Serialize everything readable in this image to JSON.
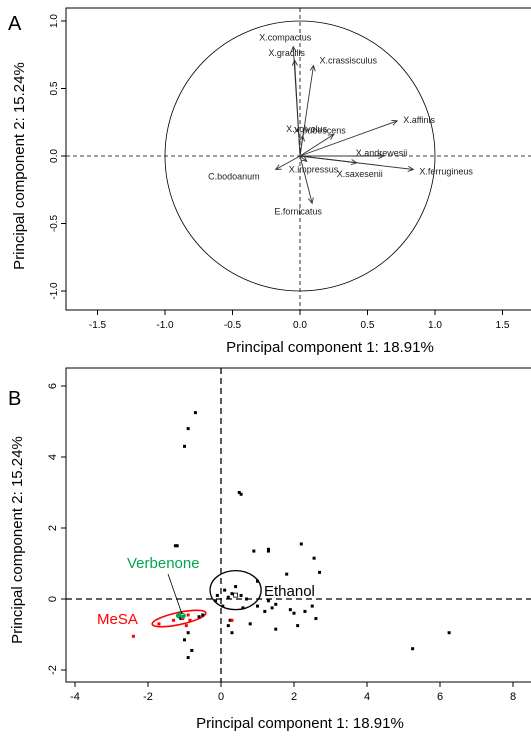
{
  "chart_data": [
    {
      "type": "vector-biplot",
      "panel_label": "A",
      "xlabel": "Principal component 1: 18.91%",
      "ylabel": "Principal component 2: 15.24%",
      "xlim": [
        -1.75,
        1.75
      ],
      "ylim": [
        -1.05,
        1.05
      ],
      "x_ticks": [
        "-1.5",
        "-1.0",
        "-0.5",
        "0.0",
        "0.5",
        "1.0",
        "1.5"
      ],
      "y_ticks": [
        "-1.0",
        "-0.5",
        "0.0",
        "0.5",
        "1.0"
      ],
      "reference_lines": "dashed at x=0 and y=0",
      "correlation_circle_radius": 1.0,
      "vectors": [
        {
          "name": "X.compactus",
          "x": -0.05,
          "y": 0.81
        },
        {
          "name": "X.gracilis",
          "x": -0.04,
          "y": 0.71
        },
        {
          "name": "X.crassisculus",
          "x": 0.1,
          "y": 0.67
        },
        {
          "name": "X.affinis",
          "x": 0.72,
          "y": 0.26
        },
        {
          "name": "X.volvolus",
          "x": 0.02,
          "y": 0.15
        },
        {
          "name": "X.pubescens",
          "x": 0.25,
          "y": 0.16
        },
        {
          "name": "X.andrewesii",
          "x": 0.62,
          "y": 0.0
        },
        {
          "name": "X.saxesenii",
          "x": 0.42,
          "y": -0.05
        },
        {
          "name": "X.ferrugineus",
          "x": 0.84,
          "y": -0.1
        },
        {
          "name": "X.impressus",
          "x": 0.05,
          "y": -0.04
        },
        {
          "name": "C.bodoanum",
          "x": -0.18,
          "y": -0.1
        },
        {
          "name": "E.fornicatus",
          "x": 0.09,
          "y": -0.35
        }
      ]
    },
    {
      "type": "scatter",
      "panel_label": "B",
      "xlabel": "Principal component 1: 18.91%",
      "ylabel": "Principal component 2: 15.24%",
      "xlim": [
        -4.4,
        8.6
      ],
      "ylim": [
        -2.3,
        6.4
      ],
      "x_ticks": [
        "-4",
        "-2",
        "0",
        "2",
        "4",
        "6",
        "8"
      ],
      "y_ticks": [
        "-2",
        "0",
        "2",
        "4",
        "6"
      ],
      "reference_lines": "dashed at x=0 and y=0",
      "groups": [
        {
          "name": "Ethanol",
          "color": "#000000",
          "ellipse": {
            "cx": 0.4,
            "cy": 0.25,
            "rx": 0.7,
            "ry": 0.55
          },
          "points": [
            {
              "x": -0.7,
              "y": 5.25
            },
            {
              "x": -0.9,
              "y": 4.8
            },
            {
              "x": -1.0,
              "y": 4.3
            },
            {
              "x": 0.5,
              "y": 3.0
            },
            {
              "x": 0.55,
              "y": 2.95
            },
            {
              "x": -1.25,
              "y": 1.5
            },
            {
              "x": -1.2,
              "y": 1.5
            },
            {
              "x": 1.3,
              "y": 1.4
            },
            {
              "x": 1.3,
              "y": 1.35
            },
            {
              "x": 0.9,
              "y": 1.35
            },
            {
              "x": 2.2,
              "y": 1.55
            },
            {
              "x": 2.55,
              "y": 1.15
            },
            {
              "x": 2.7,
              "y": 0.75
            },
            {
              "x": 1.0,
              "y": 0.5
            },
            {
              "x": 1.8,
              "y": 0.7
            },
            {
              "x": 0.4,
              "y": 0.35
            },
            {
              "x": 0.1,
              "y": 0.25
            },
            {
              "x": 0.3,
              "y": 0.15
            },
            {
              "x": 0.55,
              "y": 0.1
            },
            {
              "x": 0.7,
              "y": 0.0
            },
            {
              "x": 0.2,
              "y": 0.05
            },
            {
              "x": -0.1,
              "y": 0.1
            },
            {
              "x": -0.15,
              "y": -0.05
            },
            {
              "x": 0.05,
              "y": -0.2
            },
            {
              "x": 0.6,
              "y": -0.25
            },
            {
              "x": 1.0,
              "y": -0.2
            },
            {
              "x": 1.2,
              "y": -0.35
            },
            {
              "x": 1.4,
              "y": -0.25
            },
            {
              "x": 1.3,
              "y": -0.05
            },
            {
              "x": 1.5,
              "y": -0.15
            },
            {
              "x": 1.9,
              "y": -0.3
            },
            {
              "x": 2.0,
              "y": -0.4
            },
            {
              "x": 2.3,
              "y": -0.35
            },
            {
              "x": 2.5,
              "y": -0.2
            },
            {
              "x": 2.6,
              "y": -0.55
            },
            {
              "x": 2.1,
              "y": -0.75
            },
            {
              "x": 1.5,
              "y": -0.85
            },
            {
              "x": 0.8,
              "y": -0.7
            },
            {
              "x": 0.2,
              "y": -0.75
            },
            {
              "x": 0.3,
              "y": -0.95
            },
            {
              "x": -0.6,
              "y": -0.5
            },
            {
              "x": -0.5,
              "y": -0.45
            },
            {
              "x": -0.9,
              "y": -0.95
            },
            {
              "x": -1.0,
              "y": -1.15
            },
            {
              "x": -0.8,
              "y": -1.45
            },
            {
              "x": -0.9,
              "y": -1.65
            },
            {
              "x": -1.1,
              "y": -0.55
            },
            {
              "x": 0.25,
              "y": -0.6
            },
            {
              "x": 5.25,
              "y": -1.4
            },
            {
              "x": 6.25,
              "y": -0.95
            }
          ]
        },
        {
          "name": "MeSA",
          "color": "#ff0000",
          "ellipse": {
            "cx": -1.15,
            "cy": -0.55,
            "rx": 0.75,
            "ry": 0.17
          },
          "points": [
            {
              "x": -2.4,
              "y": -1.05
            },
            {
              "x": -1.7,
              "y": -0.7
            },
            {
              "x": -1.3,
              "y": -0.6
            },
            {
              "x": -1.05,
              "y": -0.55
            },
            {
              "x": -0.9,
              "y": -0.45
            },
            {
              "x": -0.85,
              "y": -0.6
            },
            {
              "x": -1.15,
              "y": -0.4
            },
            {
              "x": -0.95,
              "y": -0.75
            },
            {
              "x": 0.3,
              "y": -0.6
            }
          ]
        },
        {
          "name": "Verbenone",
          "color": "#00a651",
          "ellipse": {
            "cx": -1.1,
            "cy": -0.47,
            "rx": 0.12,
            "ry": 0.07
          },
          "points": [
            {
              "x": -1.15,
              "y": -0.45
            },
            {
              "x": -1.05,
              "y": -0.5
            }
          ]
        }
      ]
    }
  ]
}
